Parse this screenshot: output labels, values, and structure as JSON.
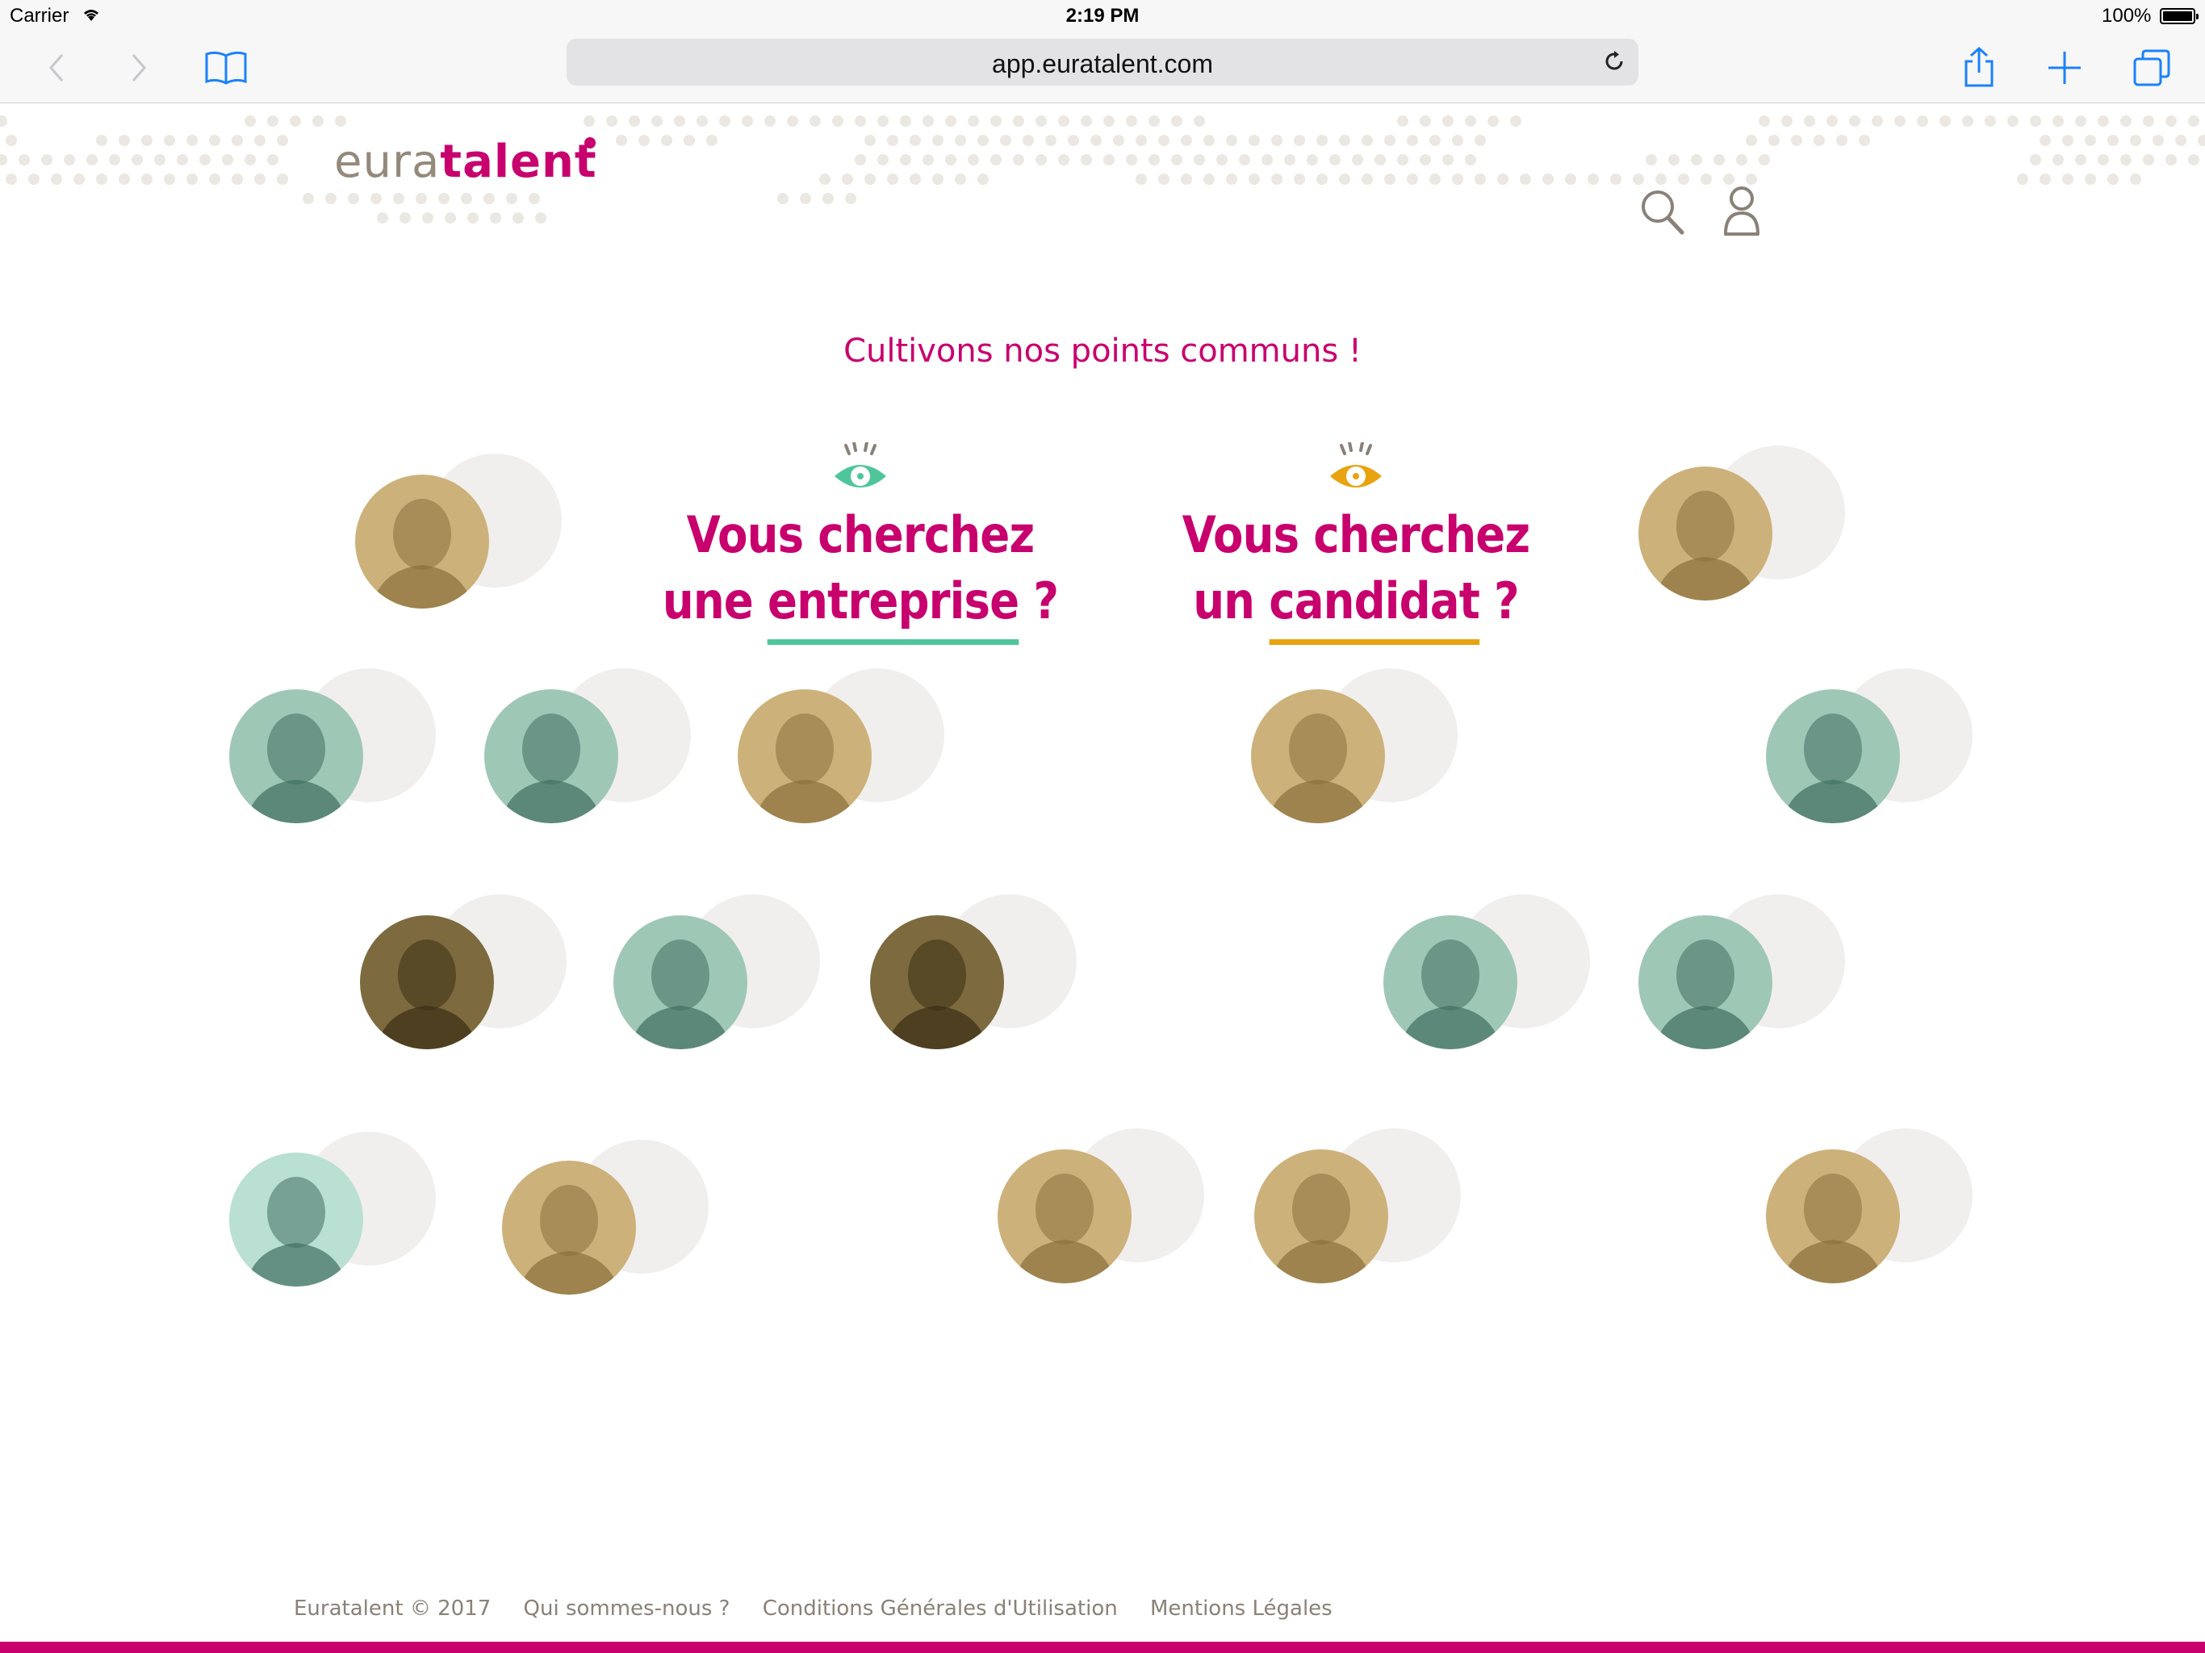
{
  "status_bar": {
    "carrier": "Carrier",
    "time": "2:19 PM",
    "battery": "100%"
  },
  "browser": {
    "url": "app.euratalent.com"
  },
  "header": {
    "logo_part1": "eura",
    "logo_part2": "talent"
  },
  "tagline": "Cultivons nos points communs !",
  "choices": [
    {
      "line1": "Vous cherchez",
      "line2_prefix": "une ",
      "line2_word": "entreprise",
      "line2_suffix": " ?",
      "accent": "#4fc69a"
    },
    {
      "line1": "Vous cherchez",
      "line2_prefix": "un ",
      "line2_word": "candidat",
      "line2_suffix": " ?",
      "accent": "#e9a310"
    }
  ],
  "colors": {
    "brand": "#c8006e",
    "green": "#4fc69a",
    "orange": "#e9a310",
    "tint_gold": "#b89a5a",
    "tint_teal": "#4f8a78"
  },
  "footer": {
    "copyright": "Euratalent © 2017",
    "about": "Qui sommes-nous ?",
    "terms": "Conditions Générales d'Utilisation",
    "legal": "Mentions Légales"
  }
}
